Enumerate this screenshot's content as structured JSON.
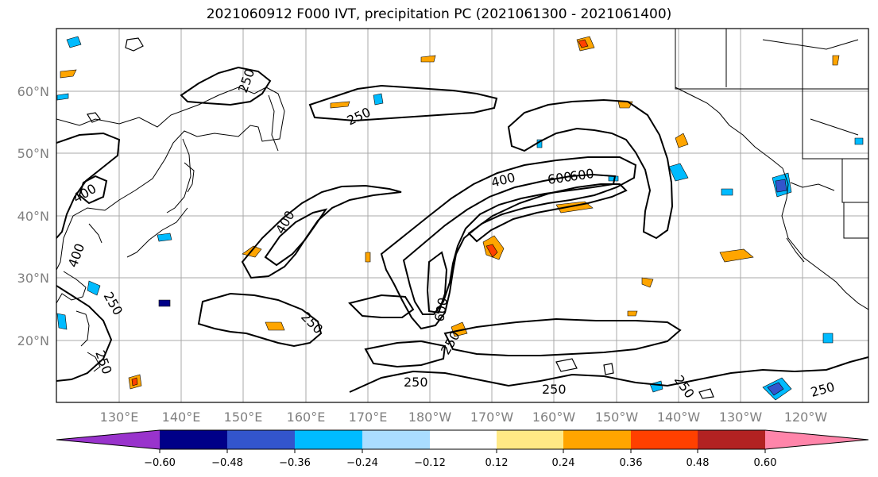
{
  "title": "2021060912 F000 IVT, precipitation PC (2021061300 - 2021061400)",
  "map": {
    "lat_labels": [
      "60°N",
      "50°N",
      "40°N",
      "30°N",
      "20°N"
    ],
    "lon_labels": [
      "130°E",
      "140°E",
      "150°E",
      "160°E",
      "170°E",
      "180°W",
      "170°W",
      "160°W",
      "150°W",
      "140°W",
      "130°W",
      "120°W"
    ],
    "contour_labels": [
      "250",
      "250",
      "250",
      "400",
      "400",
      "400",
      "400",
      "600",
      "600",
      "600",
      "250",
      "250",
      "250",
      "250",
      "250",
      "250",
      "250"
    ]
  },
  "colorbar": {
    "colors": [
      "#9933cc",
      "#000088",
      "#3355cc",
      "#00bbff",
      "#aaddff",
      "#ffffff",
      "#ffe985",
      "#ffa500",
      "#ff4000",
      "#b22222",
      "#ff85aa"
    ],
    "tick_labels": [
      "−0.60",
      "−0.48",
      "−0.36",
      "−0.24",
      "−0.12",
      "0.12",
      "0.24",
      "0.36",
      "0.48",
      "0.60"
    ]
  }
}
